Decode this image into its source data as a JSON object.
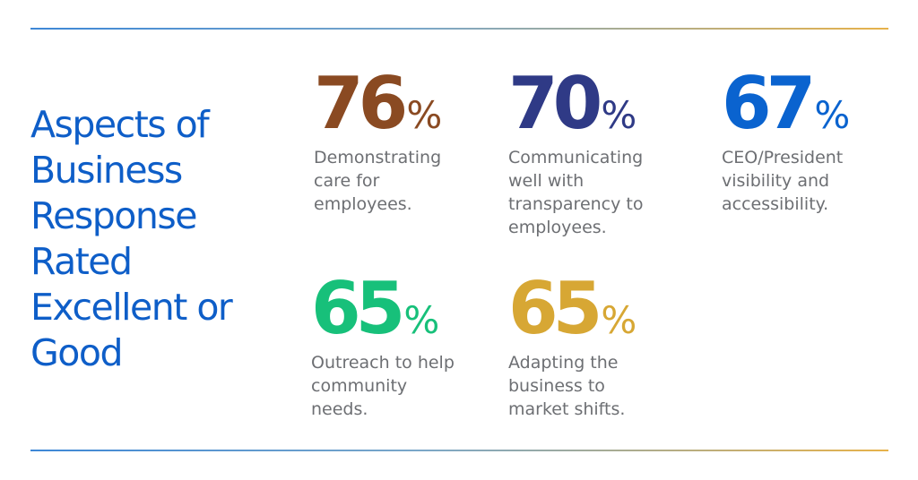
{
  "headline": {
    "lines": [
      "Aspects of",
      "Business",
      "Response",
      "Rated",
      "Excellent or",
      "Good"
    ]
  },
  "stats": [
    {
      "value": "76",
      "unit": "%",
      "color": "#8a4a22",
      "desc": [
        "Demonstrating",
        "care for",
        "employees."
      ]
    },
    {
      "value": "70",
      "unit": "%",
      "color": "#2f3a86",
      "desc": [
        "Communicating",
        "well with",
        "transparency to",
        "employees."
      ]
    },
    {
      "value": "67",
      "unit": "%",
      "color": "#0a63cf",
      "desc": [
        "CEO/President",
        "visibility and",
        "accessibility."
      ]
    },
    {
      "value": "65",
      "unit": "%",
      "color": "#17c07a",
      "desc": [
        "Outreach to help",
        "community",
        "needs."
      ]
    },
    {
      "value": "65",
      "unit": "%",
      "color": "#d7a734",
      "desc": [
        "Adapting the",
        "business to",
        "market shifts."
      ]
    }
  ],
  "colors": {
    "headline": "#0e5ec8",
    "description": "#6d6f73",
    "rule_start": "#3d87d6",
    "rule_end": "#e7b24a"
  }
}
